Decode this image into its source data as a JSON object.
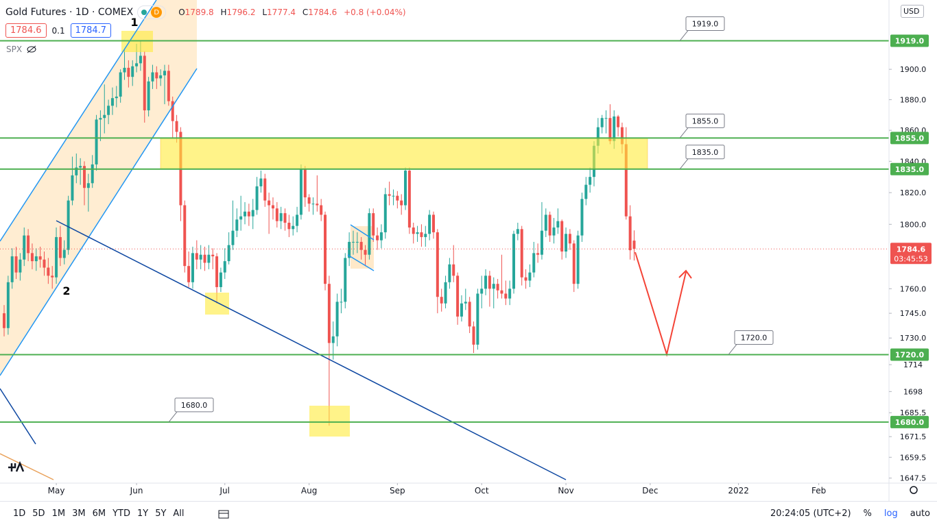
{
  "header": {
    "title": "Gold Futures · 1D · COMEX",
    "interval_badge": "D",
    "ohlc_labels": [
      "O",
      "H",
      "L",
      "C"
    ],
    "change": "+0.8 (+0.04%)",
    "bid": 1784.6,
    "spread": 0.1,
    "ask": 1784.7,
    "overlay": "SPX"
  },
  "price_axis": {
    "currency": "USD"
  },
  "toolbar": {
    "ranges": [
      "1D",
      "5D",
      "1M",
      "3M",
      "6M",
      "YTD",
      "1Y",
      "5Y",
      "All"
    ],
    "time": "20:24:05 (UTC+2)",
    "percent": "%",
    "log": "log",
    "auto": "auto"
  },
  "annotations": {
    "wave_labels": [
      "1",
      "2"
    ]
  },
  "chart_data": {
    "type": "candlestick",
    "up_color": "#26a69a",
    "down_color": "#ef5350",
    "log": true,
    "grid": false,
    "open": [
      1745,
      1736,
      1764,
      1780,
      1770,
      1778,
      1793,
      1782,
      1777,
      1780,
      1778,
      1773,
      1768,
      1767,
      1792,
      1779,
      1784,
      1815,
      1831,
      1836,
      1837,
      1823,
      1826,
      1838,
      1867,
      1868,
      1870,
      1876,
      1881,
      1882,
      1898,
      1901,
      1895,
      1902,
      1904,
      1909,
      1873,
      1892,
      1898,
      1894,
      1896,
      1899,
      1879,
      1866,
      1859,
      1812,
      1774,
      1764,
      1782,
      1778,
      1781,
      1776,
      1781,
      1780,
      1761,
      1770,
      1777,
      1787,
      1796,
      1803,
      1805,
      1808,
      1805,
      1809,
      1824,
      1829,
      1815,
      1812,
      1810,
      1802,
      1807,
      1801,
      1797,
      1799,
      1806,
      1835,
      1817,
      1813,
      1813,
      1812,
      1806,
      1763,
      1727,
      1731,
      1752,
      1752,
      1779,
      1789,
      1789,
      1789,
      1784,
      1781,
      1807,
      1793,
      1790,
      1795,
      1819,
      1818,
      1818,
      1815,
      1812,
      1834,
      1798,
      1794,
      1795,
      1792,
      1794,
      1806,
      1795,
      1755,
      1751,
      1764,
      1775,
      1768,
      1743,
      1751,
      1752,
      1737,
      1726,
      1757,
      1760,
      1768,
      1760,
      1763,
      1759,
      1757,
      1754,
      1760,
      1794,
      1797,
      1767,
      1765,
      1770,
      1782,
      1781,
      1796,
      1806,
      1793,
      1798,
      1802,
      1783,
      1794,
      1788,
      1763,
      1793,
      1816,
      1825,
      1830,
      1850,
      1862,
      1868,
      1868,
      1853,
      1869,
      1862,
      1851,
      1805,
      1789.8
    ],
    "high": [
      1750,
      1768,
      1785,
      1786,
      1782,
      1798,
      1797,
      1788,
      1785,
      1786,
      1783,
      1779,
      1774,
      1798,
      1799,
      1790,
      1818,
      1843,
      1845,
      1842,
      1840,
      1832,
      1844,
      1870,
      1873,
      1890,
      1880,
      1888,
      1889,
      1900,
      1913,
      1906,
      1906,
      1917,
      1919,
      1912,
      1895,
      1903,
      1902,
      1900,
      1903,
      1903,
      1882,
      1870,
      1862,
      1815,
      1783,
      1786,
      1790,
      1787,
      1786,
      1787,
      1785,
      1782,
      1773,
      1785,
      1795,
      1815,
      1810,
      1818,
      1814,
      1813,
      1816,
      1830,
      1834,
      1832,
      1820,
      1817,
      1814,
      1811,
      1810,
      1806,
      1805,
      1811,
      1838,
      1837,
      1819,
      1817,
      1831,
      1816,
      1808,
      1768,
      1740,
      1757,
      1760,
      1782,
      1795,
      1796,
      1795,
      1792,
      1787,
      1810,
      1810,
      1798,
      1800,
      1823,
      1827,
      1822,
      1821,
      1819,
      1836,
      1836,
      1801,
      1799,
      1800,
      1799,
      1809,
      1808,
      1797,
      1760,
      1768,
      1779,
      1787,
      1770,
      1756,
      1760,
      1755,
      1740,
      1760,
      1768,
      1772,
      1771,
      1767,
      1766,
      1781,
      1765,
      1765,
      1796,
      1801,
      1799,
      1772,
      1775,
      1789,
      1788,
      1814,
      1810,
      1808,
      1804,
      1810,
      1803,
      1798,
      1797,
      1790,
      1796,
      1820,
      1830,
      1836,
      1853,
      1868,
      1870,
      1873,
      1877,
      1873,
      1870,
      1865,
      1862,
      1812,
      1796.2
    ],
    "low": [
      1731,
      1732,
      1760,
      1766,
      1765,
      1774,
      1777,
      1772,
      1771,
      1773,
      1768,
      1763,
      1760,
      1763,
      1774,
      1775,
      1781,
      1812,
      1826,
      1825,
      1812,
      1808,
      1823,
      1834,
      1853,
      1858,
      1864,
      1870,
      1875,
      1878,
      1893,
      1888,
      1889,
      1898,
      1899,
      1865,
      1869,
      1887,
      1887,
      1889,
      1877,
      1876,
      1855,
      1852,
      1802,
      1770,
      1761,
      1760,
      1772,
      1772,
      1771,
      1772,
      1772,
      1751,
      1758,
      1766,
      1775,
      1784,
      1792,
      1796,
      1800,
      1799,
      1797,
      1806,
      1820,
      1811,
      1794,
      1803,
      1798,
      1797,
      1796,
      1792,
      1793,
      1795,
      1803,
      1811,
      1808,
      1806,
      1808,
      1802,
      1759,
      1677.9,
      1717,
      1725,
      1745,
      1748,
      1774,
      1781,
      1782,
      1778,
      1774,
      1778,
      1789,
      1784,
      1785,
      1791,
      1812,
      1812,
      1810,
      1806,
      1809,
      1794,
      1788,
      1789,
      1786,
      1786,
      1790,
      1791,
      1745,
      1746,
      1748,
      1760,
      1764,
      1738,
      1740,
      1747,
      1733,
      1721,
      1723,
      1748,
      1756,
      1749,
      1748,
      1754,
      1754,
      1750,
      1750,
      1757,
      1790,
      1762,
      1760,
      1761,
      1767,
      1776,
      1778,
      1792,
      1789,
      1788,
      1794,
      1778,
      1779,
      1784,
      1758,
      1760,
      1789,
      1812,
      1820,
      1824,
      1845,
      1858,
      1858,
      1851,
      1848,
      1856,
      1845,
      1803,
      1778,
      1777.4
    ],
    "close": [
      1736,
      1764,
      1780,
      1770,
      1778,
      1793,
      1782,
      1777,
      1780,
      1778,
      1773,
      1768,
      1767,
      1792,
      1779,
      1784,
      1815,
      1831,
      1836,
      1837,
      1823,
      1826,
      1838,
      1867,
      1868,
      1870,
      1876,
      1881,
      1882,
      1898,
      1901,
      1895,
      1902,
      1904,
      1909,
      1873,
      1892,
      1898,
      1894,
      1896,
      1899,
      1879,
      1866,
      1859,
      1812,
      1774,
      1764,
      1782,
      1778,
      1781,
      1776,
      1781,
      1780,
      1761,
      1770,
      1777,
      1787,
      1796,
      1803,
      1805,
      1808,
      1805,
      1809,
      1824,
      1829,
      1815,
      1812,
      1810,
      1802,
      1807,
      1801,
      1797,
      1799,
      1806,
      1835,
      1817,
      1813,
      1813,
      1812,
      1806,
      1763,
      1727,
      1731,
      1752,
      1752,
      1779,
      1789,
      1789,
      1789,
      1784,
      1781,
      1807,
      1793,
      1790,
      1795,
      1819,
      1818,
      1818,
      1815,
      1812,
      1834,
      1798,
      1794,
      1795,
      1792,
      1794,
      1806,
      1795,
      1755,
      1751,
      1764,
      1775,
      1768,
      1743,
      1751,
      1752,
      1737,
      1726,
      1757,
      1760,
      1768,
      1760,
      1763,
      1759,
      1757,
      1754,
      1760,
      1794,
      1797,
      1767,
      1765,
      1770,
      1782,
      1781,
      1796,
      1806,
      1793,
      1798,
      1802,
      1783,
      1794,
      1788,
      1763,
      1793,
      1816,
      1825,
      1830,
      1850,
      1862,
      1868,
      1868,
      1853,
      1869,
      1862,
      1851,
      1805,
      1783.8,
      1784.6
    ],
    "countdown": "03:45:53",
    "xlim": [
      -1.0256,
      220.5
    ],
    "xticks": [
      {
        "value": 13,
        "label": "May"
      },
      {
        "value": 33,
        "label": "Jun"
      },
      {
        "value": 55,
        "label": "Jul"
      },
      {
        "value": 76,
        "label": "Aug"
      },
      {
        "value": 98,
        "label": "Sep"
      },
      {
        "value": 119,
        "label": "Oct"
      },
      {
        "value": 140,
        "label": "Nov"
      },
      {
        "value": 161,
        "label": "Dec"
      },
      {
        "value": 183,
        "label": "2022"
      },
      {
        "value": 203,
        "label": "Feb"
      }
    ],
    "ylim": [
      1644.6,
      1946.5
    ],
    "yticks": [
      {
        "value": 1900,
        "label": "1900.0"
      },
      {
        "value": 1880,
        "label": "1880.0"
      },
      {
        "value": 1860,
        "label": "1860.0"
      },
      {
        "value": 1840,
        "label": "1840.0"
      },
      {
        "value": 1820,
        "label": "1820.0"
      },
      {
        "value": 1800,
        "label": "1800.0"
      },
      {
        "value": 1760,
        "label": "1760.0"
      },
      {
        "value": 1745,
        "label": "1745.0"
      },
      {
        "value": 1730,
        "label": "1730.0"
      },
      1714,
      1698,
      1685.5,
      1671.5,
      1659.5,
      1647.5
    ],
    "levels_color": "#4caf50",
    "levels": [
      {
        "value": 1919,
        "label": "1919.0"
      },
      {
        "value": 1855,
        "label": "1855.0"
      },
      {
        "value": 1835,
        "label": "1835.0"
      },
      {
        "value": 1720,
        "label": "1720.0"
      },
      {
        "value": 1680,
        "label": "1680.0"
      }
    ]
  }
}
